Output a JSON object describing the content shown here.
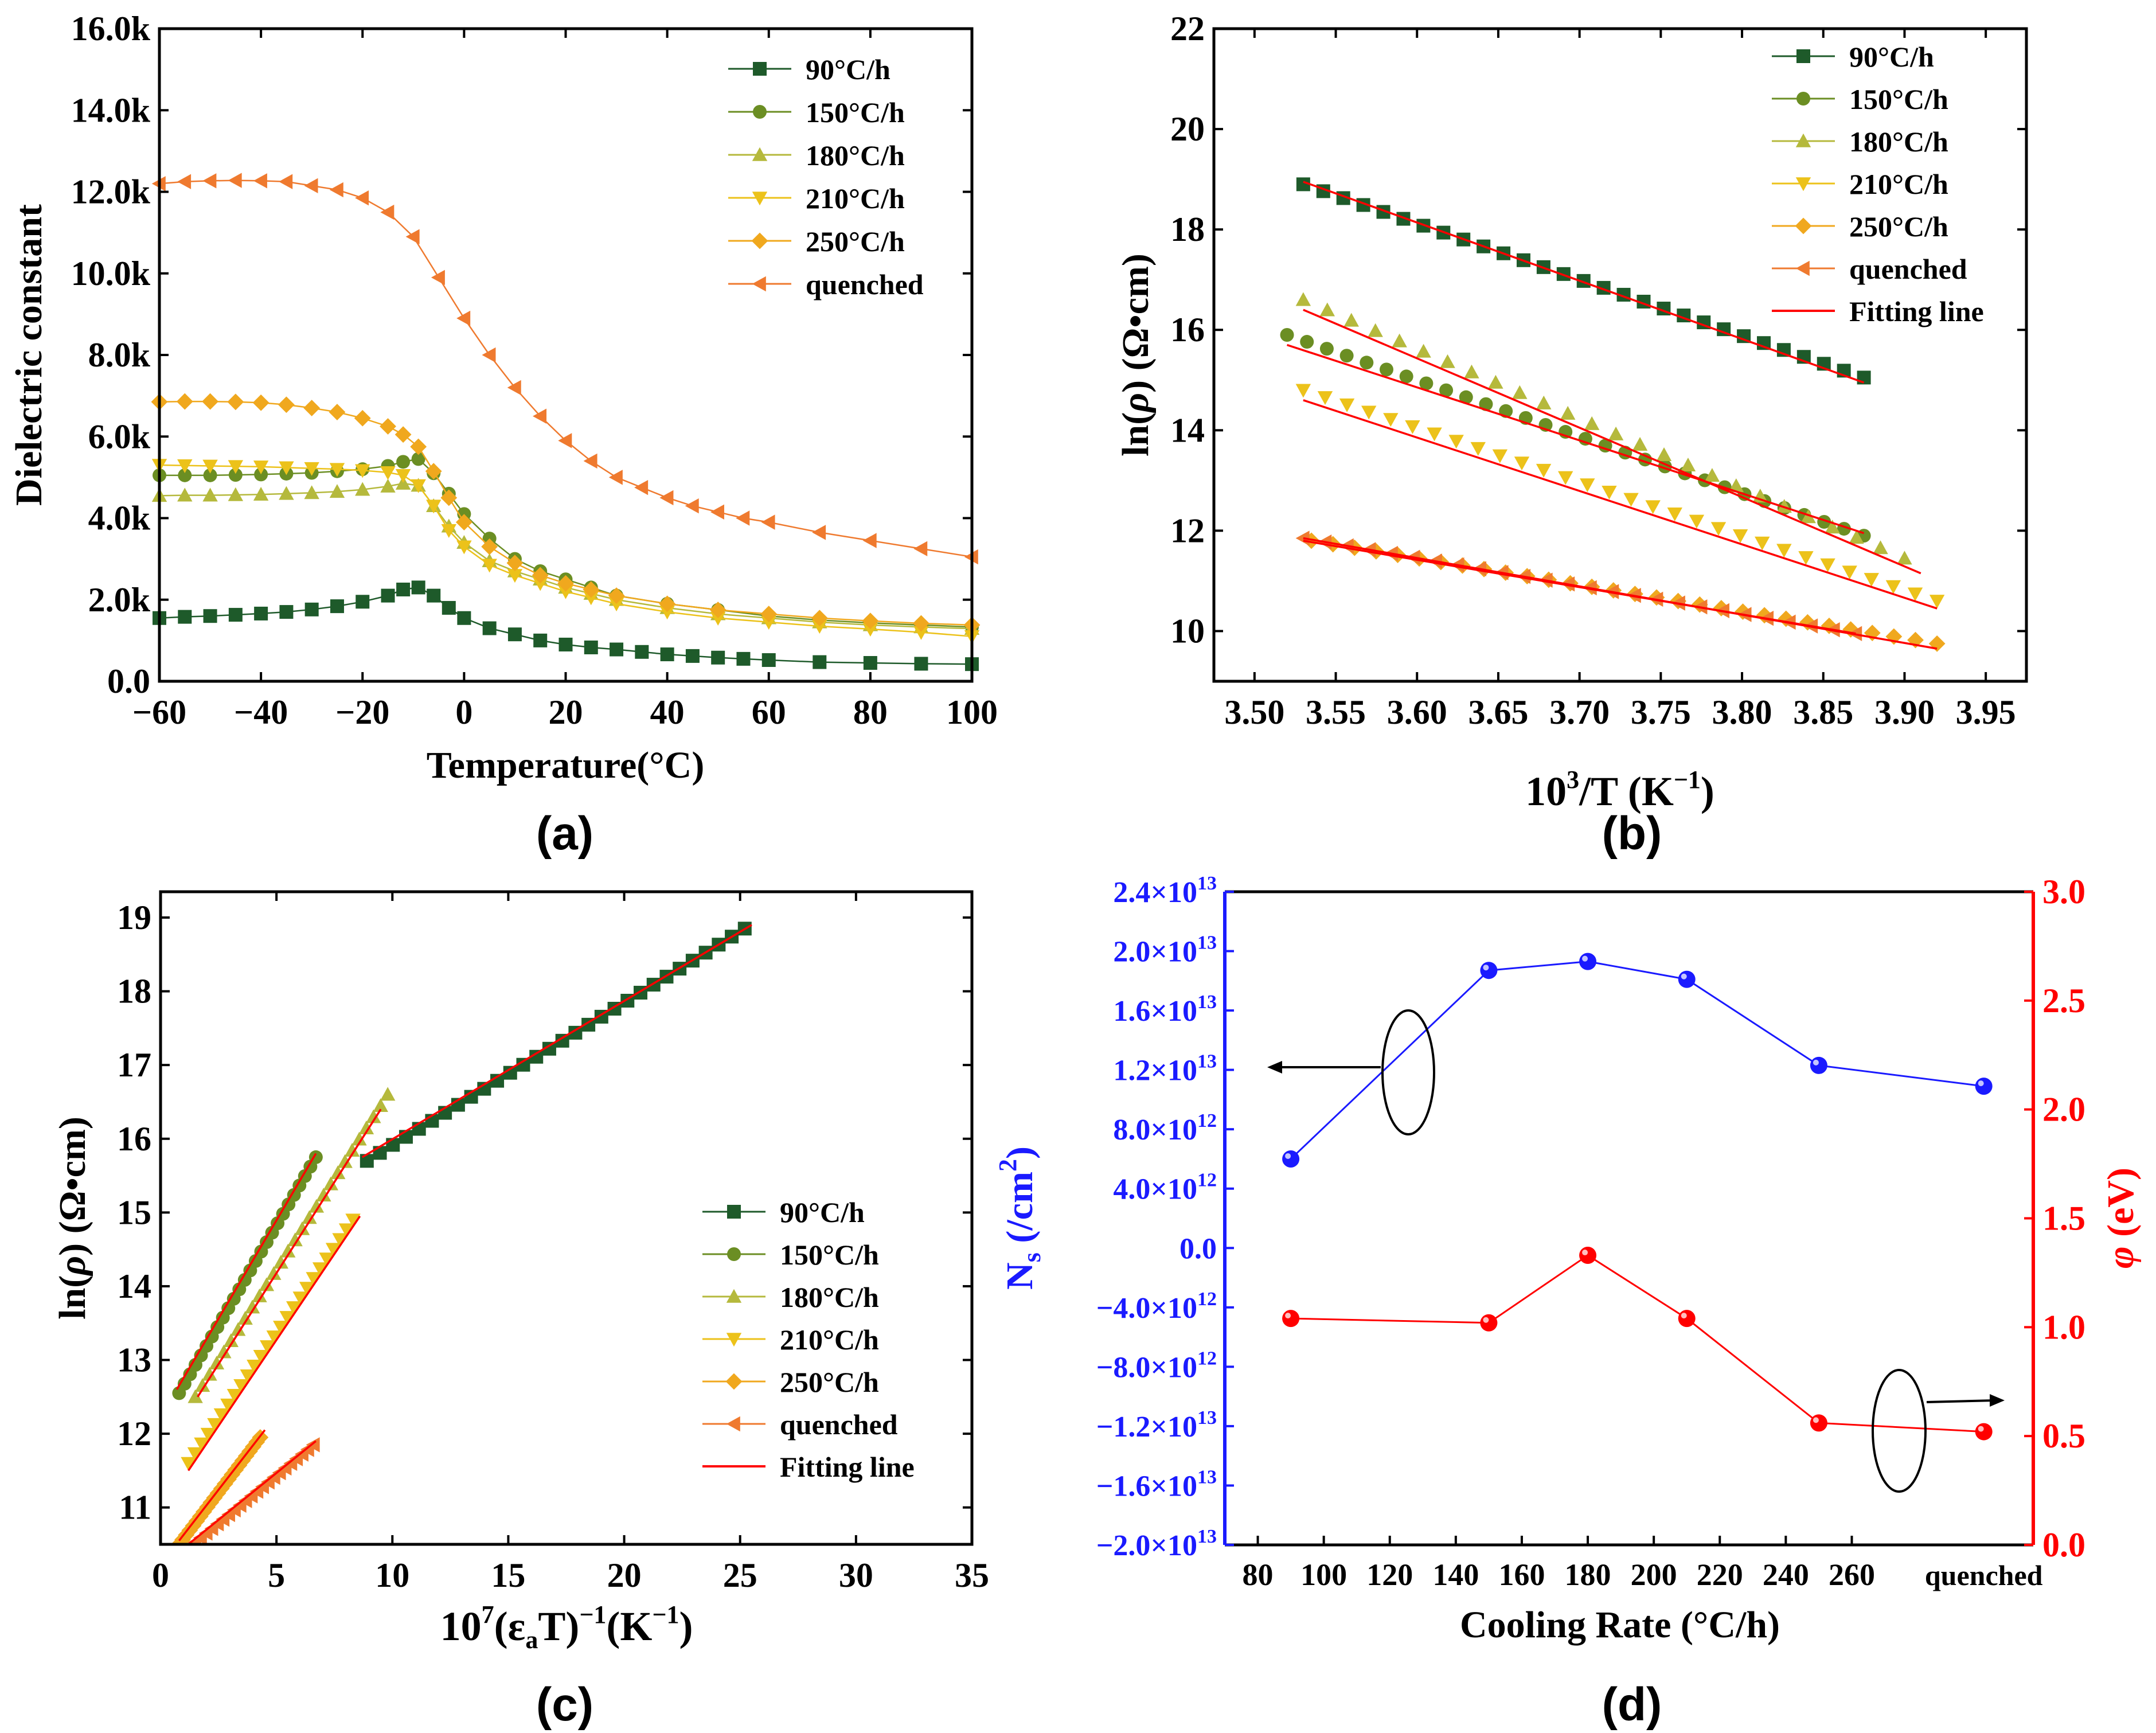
{
  "chart_data": [
    {
      "type": "line",
      "panel_label": "(a)",
      "xlabel": "Temperature(°C)",
      "ylabel": "Dielectric constant",
      "xlim": [
        -60,
        100
      ],
      "ylim": [
        0,
        16000
      ],
      "xticks": [
        -60,
        -40,
        -20,
        0,
        20,
        40,
        60,
        80,
        100
      ],
      "xtick_labels": [
        "−60",
        "−40",
        "−20",
        "0",
        "20",
        "40",
        "60",
        "80",
        "100"
      ],
      "yticks": [
        0,
        2000,
        4000,
        6000,
        8000,
        10000,
        12000,
        14000,
        16000
      ],
      "ytick_labels": [
        "0.0",
        "2.0k",
        "4.0k",
        "6.0k",
        "8.0k",
        "10.0k",
        "12.0k",
        "14.0k",
        "16.0k"
      ],
      "legend_position": "top-right",
      "series": [
        {
          "name": "90°C/h",
          "marker": "square",
          "color": "#1e5a2a",
          "x": [
            -60,
            -55,
            -50,
            -45,
            -40,
            -35,
            -30,
            -25,
            -20,
            -15,
            -12,
            -9,
            -6,
            -3,
            0,
            5,
            10,
            15,
            20,
            25,
            30,
            35,
            40,
            45,
            50,
            55,
            60,
            70,
            80,
            90,
            100
          ],
          "y": [
            1550,
            1580,
            1600,
            1630,
            1660,
            1700,
            1760,
            1840,
            1950,
            2100,
            2250,
            2300,
            2100,
            1800,
            1550,
            1300,
            1150,
            1000,
            900,
            830,
            780,
            720,
            660,
            620,
            580,
            550,
            520,
            470,
            450,
            430,
            420
          ]
        },
        {
          "name": "150°C/h",
          "marker": "circle",
          "color": "#6b8e23",
          "x": [
            -60,
            -55,
            -50,
            -45,
            -40,
            -35,
            -30,
            -25,
            -20,
            -15,
            -12,
            -9,
            -6,
            -3,
            0,
            5,
            10,
            15,
            20,
            25,
            30,
            40,
            50,
            60,
            70,
            80,
            90,
            100
          ],
          "y": [
            5050,
            5050,
            5050,
            5060,
            5070,
            5090,
            5110,
            5150,
            5200,
            5280,
            5380,
            5450,
            5100,
            4600,
            4100,
            3500,
            3000,
            2700,
            2500,
            2300,
            2100,
            1900,
            1750,
            1600,
            1500,
            1430,
            1380,
            1330
          ]
        },
        {
          "name": "180°C/h",
          "marker": "triangle-up",
          "color": "#b5b93c",
          "x": [
            -60,
            -55,
            -50,
            -45,
            -40,
            -35,
            -30,
            -25,
            -20,
            -15,
            -12,
            -9,
            -6,
            -3,
            0,
            5,
            10,
            15,
            20,
            25,
            30,
            40,
            50,
            60,
            70,
            80,
            90,
            100
          ],
          "y": [
            4550,
            4560,
            4560,
            4570,
            4580,
            4600,
            4620,
            4650,
            4700,
            4780,
            4850,
            4800,
            4300,
            3800,
            3400,
            2950,
            2700,
            2500,
            2300,
            2150,
            2000,
            1800,
            1650,
            1550,
            1450,
            1380,
            1330,
            1290
          ]
        },
        {
          "name": "210°C/h",
          "marker": "triangle-down",
          "color": "#ecc21a",
          "x": [
            -60,
            -55,
            -50,
            -45,
            -40,
            -35,
            -30,
            -25,
            -20,
            -15,
            -12,
            -9,
            -6,
            -3,
            0,
            5,
            10,
            15,
            20,
            25,
            30,
            40,
            50,
            60,
            70,
            80,
            90,
            100
          ],
          "y": [
            5300,
            5290,
            5280,
            5270,
            5260,
            5240,
            5220,
            5200,
            5170,
            5120,
            5050,
            4800,
            4300,
            3700,
            3300,
            2850,
            2600,
            2400,
            2200,
            2050,
            1900,
            1700,
            1550,
            1450,
            1350,
            1280,
            1200,
            1100
          ]
        },
        {
          "name": "250°C/h",
          "marker": "diamond",
          "color": "#f0a81e",
          "x": [
            -60,
            -55,
            -50,
            -45,
            -40,
            -35,
            -30,
            -25,
            -20,
            -15,
            -12,
            -9,
            -6,
            -3,
            0,
            5,
            10,
            15,
            20,
            25,
            30,
            40,
            50,
            60,
            70,
            80,
            90,
            100
          ],
          "y": [
            6850,
            6860,
            6860,
            6850,
            6830,
            6780,
            6700,
            6600,
            6450,
            6250,
            6050,
            5750,
            5150,
            4500,
            3900,
            3300,
            2900,
            2600,
            2400,
            2250,
            2100,
            1900,
            1750,
            1650,
            1550,
            1480,
            1420,
            1380
          ]
        },
        {
          "name": "quenched",
          "marker": "triangle-left",
          "color": "#ef7a2f",
          "x": [
            -60,
            -55,
            -50,
            -45,
            -40,
            -35,
            -30,
            -25,
            -20,
            -15,
            -10,
            -5,
            0,
            5,
            10,
            15,
            20,
            25,
            30,
            35,
            40,
            45,
            50,
            55,
            60,
            70,
            80,
            90,
            100
          ],
          "y": [
            12200,
            12250,
            12270,
            12280,
            12270,
            12250,
            12150,
            12050,
            11850,
            11500,
            10900,
            9900,
            8900,
            8000,
            7200,
            6500,
            5900,
            5400,
            5000,
            4750,
            4500,
            4300,
            4150,
            4000,
            3900,
            3650,
            3450,
            3250,
            3050
          ]
        }
      ]
    },
    {
      "type": "scatter",
      "panel_label": "(b)",
      "xlabel_base": "10",
      "xlabel_sup": "3",
      "xlabel_mid": "/T (K",
      "xlabel_sup2": "−1",
      "xlabel_end": ")",
      "ylabel_a": "ln(",
      "ylabel_rho": "ρ",
      "ylabel_b": ") (Ω•cm)",
      "xlim": [
        3.475,
        3.975
      ],
      "ylim": [
        9.0,
        22.0
      ],
      "xticks": [
        3.5,
        3.55,
        3.6,
        3.65,
        3.7,
        3.75,
        3.8,
        3.85,
        3.9,
        3.95
      ],
      "xtick_labels": [
        "3.50",
        "3.55",
        "3.60",
        "3.65",
        "3.70",
        "3.75",
        "3.80",
        "3.85",
        "3.90",
        "3.95"
      ],
      "yticks": [
        10,
        12,
        14,
        16,
        18,
        20,
        22
      ],
      "ytick_labels": [
        "10",
        "12",
        "14",
        "16",
        "18",
        "20",
        "22"
      ],
      "legend_position": "top-right",
      "fit_label": "Fitting line",
      "series": [
        {
          "name": "90°C/h",
          "marker": "square",
          "color": "#1e5a2a",
          "x_start": 3.53,
          "x_end": 3.875,
          "n": 29,
          "y_start": 18.9,
          "y_end": 15.05,
          "fit": [
            3.53,
            18.95,
            3.875,
            14.95
          ]
        },
        {
          "name": "150°C/h",
          "marker": "circle",
          "color": "#6b8e23",
          "x_start": 3.52,
          "x_end": 3.875,
          "n": 30,
          "y_start": 15.9,
          "y_end": 11.9,
          "fit": [
            3.52,
            15.7,
            3.875,
            11.95
          ]
        },
        {
          "name": "180°C/h",
          "marker": "triangle-up",
          "color": "#b5b93c",
          "x_start": 3.53,
          "x_end": 3.9,
          "n": 26,
          "y_start": 16.6,
          "y_end": 11.45,
          "fit": [
            3.53,
            16.4,
            3.91,
            11.15
          ]
        },
        {
          "name": "210°C/h",
          "marker": "triangle-down",
          "color": "#ecc21a",
          "x_start": 3.53,
          "x_end": 3.92,
          "n": 30,
          "y_start": 14.8,
          "y_end": 10.6,
          "fit": [
            3.53,
            14.6,
            3.92,
            10.45
          ]
        },
        {
          "name": "250°C/h",
          "marker": "diamond",
          "color": "#f0a81e",
          "x_start": 3.535,
          "x_end": 3.92,
          "n": 30,
          "y_start": 11.8,
          "y_end": 9.75,
          "fit": [
            3.53,
            11.85,
            3.92,
            9.65
          ]
        },
        {
          "name": "quenched",
          "marker": "triangle-left",
          "color": "#ef7a2f",
          "x_start": 3.53,
          "x_end": 3.87,
          "n": 26,
          "y_start": 11.85,
          "y_end": 9.95,
          "fit": [
            3.53,
            11.8,
            3.87,
            9.95
          ]
        }
      ]
    },
    {
      "type": "scatter",
      "panel_label": "(c)",
      "xlabel_a": "10",
      "xlabel_sup": "7",
      "xlabel_b": "(ε",
      "xlabel_sub": "a",
      "xlabel_c": "T)",
      "xlabel_sup2": "−1",
      "xlabel_d": "(K",
      "xlabel_sup3": "−1",
      "xlabel_e": ")",
      "ylabel_a": "ln(",
      "ylabel_rho": "ρ",
      "ylabel_b": ") (Ω•cm)",
      "xlim": [
        0,
        35
      ],
      "ylim": [
        10.5,
        19.35
      ],
      "xticks": [
        0,
        5,
        10,
        15,
        20,
        25,
        30,
        35
      ],
      "xtick_labels": [
        "0",
        "5",
        "10",
        "15",
        "20",
        "25",
        "30",
        "35"
      ],
      "yticks": [
        11,
        12,
        13,
        14,
        15,
        16,
        17,
        18,
        19
      ],
      "ytick_labels": [
        "11",
        "12",
        "13",
        "14",
        "15",
        "16",
        "17",
        "18",
        "19"
      ],
      "legend_position": "bottom-right",
      "fit_label": "Fitting line",
      "series": [
        {
          "name": "90°C/h",
          "marker": "square",
          "color": "#1e5a2a",
          "x_start": 8.9,
          "x_end": 25.2,
          "n": 30,
          "y_start": 15.7,
          "y_end": 18.85,
          "fit": [
            8.7,
            15.75,
            25.5,
            18.9
          ]
        },
        {
          "name": "150°C/h",
          "marker": "circle",
          "color": "#6b8e23",
          "x_start": 0.8,
          "x_end": 6.7,
          "n": 26,
          "y_start": 12.55,
          "y_end": 15.75,
          "fit": [
            0.7,
            12.6,
            6.7,
            15.8
          ]
        },
        {
          "name": "180°C/h",
          "marker": "triangle-up",
          "color": "#b5b93c",
          "x_start": 1.5,
          "x_end": 9.8,
          "n": 28,
          "y_start": 12.5,
          "y_end": 16.6,
          "fit": [
            1.6,
            12.5,
            9.5,
            16.4
          ]
        },
        {
          "name": "210°C/h",
          "marker": "triangle-down",
          "color": "#ecc21a",
          "x_start": 1.2,
          "x_end": 8.3,
          "n": 26,
          "y_start": 11.6,
          "y_end": 14.9,
          "fit": [
            1.2,
            11.5,
            8.6,
            14.95
          ]
        },
        {
          "name": "250°C/h",
          "marker": "diamond",
          "color": "#f0a81e",
          "x_start": 0.8,
          "x_end": 4.3,
          "n": 24,
          "y_start": 10.5,
          "y_end": 11.95,
          "fit": [
            0.8,
            10.55,
            4.5,
            12.05
          ]
        },
        {
          "name": "quenched",
          "marker": "triangle-left",
          "color": "#ef7a2f",
          "x_start": 1.0,
          "x_end": 6.6,
          "n": 24,
          "y_start": 10.4,
          "y_end": 11.85,
          "fit": [
            1.0,
            10.45,
            6.7,
            11.9
          ]
        }
      ]
    },
    {
      "type": "line",
      "panel_label": "(d)",
      "xlabel": "Cooling Rate (°C/h)",
      "categories": [
        "90",
        "150",
        "180",
        "210",
        "250",
        "quenched"
      ],
      "x_positions": [
        90,
        150,
        180,
        210,
        250,
        300
      ],
      "xlim": [
        70,
        315
      ],
      "xticks": [
        80,
        100,
        120,
        140,
        160,
        180,
        200,
        220,
        240,
        260
      ],
      "xtick_labels": [
        "80",
        "100",
        "120",
        "140",
        "160",
        "180",
        "200",
        "220",
        "240",
        "260"
      ],
      "extra_tick_label": "quenched",
      "left_axis": {
        "label_a": "N",
        "label_sub": "s",
        "label_b": " (/cm",
        "label_sup": "2",
        "label_c": ")",
        "color": "#1a1aff",
        "range": [
          -20000000000000.0,
          24000000000000.0
        ],
        "ticks": [
          -20000000000000.0,
          -16000000000000.0,
          -12000000000000.0,
          -8000000000000.0,
          -4000000000000.0,
          0,
          4000000000000.0,
          8000000000000.0,
          12000000000000.0,
          16000000000000.0,
          20000000000000.0,
          24000000000000.0
        ],
        "tick_mantissa": [
          "−2.0×10",
          "−1.6×10",
          "−1.2×10",
          "−8.0×10",
          "−4.0×10",
          "0.0",
          "4.0×10",
          "8.0×10",
          "1.2×10",
          "1.6×10",
          "2.0×10",
          "2.4×10"
        ],
        "tick_exp": [
          "13",
          "13",
          "13",
          "12",
          "12",
          "",
          "12",
          "12",
          "13",
          "13",
          "13",
          "13"
        ]
      },
      "right_axis": {
        "label_phi": "φ",
        "label_rest": " (eV)",
        "color": "#ff0000",
        "range": [
          0.0,
          3.0
        ],
        "ticks": [
          0.0,
          0.5,
          1.0,
          1.5,
          2.0,
          2.5,
          3.0
        ],
        "tick_labels": [
          "0.0",
          "0.5",
          "1.0",
          "1.5",
          "2.0",
          "2.5",
          "3.0"
        ]
      },
      "series": [
        {
          "name": "Ns",
          "axis": "left",
          "color": "#1a1aff",
          "values": [
            6000000000000.0,
            18700000000000.0,
            19300000000000.0,
            18100000000000.0,
            12300000000000.0,
            10900000000000.0
          ]
        },
        {
          "name": "phi",
          "axis": "right",
          "color": "#ff0000",
          "values": [
            1.04,
            1.02,
            1.33,
            1.04,
            0.56,
            0.52
          ]
        }
      ]
    }
  ]
}
